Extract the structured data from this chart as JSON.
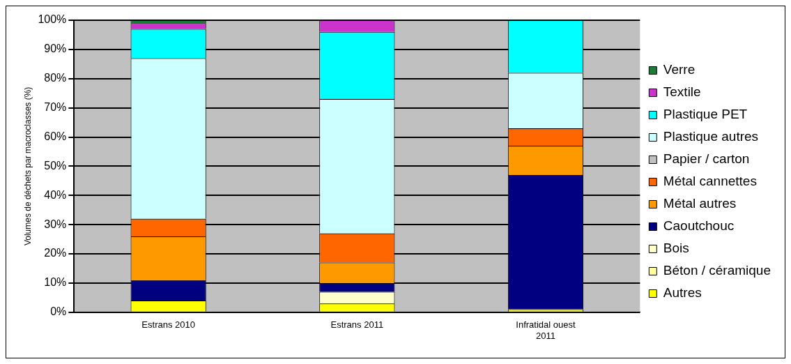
{
  "chart_data": {
    "type": "bar",
    "stacked": true,
    "ylabel": "Volumes de déchets par macroclasses (%)",
    "categories": [
      "Estrans 2010",
      "Estrans 2011",
      "Infratidal ouest 2011"
    ],
    "series": [
      {
        "name": "Autres",
        "color": "#ffff00",
        "values": [
          4,
          3,
          1
        ]
      },
      {
        "name": "Béton / céramique",
        "color": "#ffffa0",
        "values": [
          0,
          0,
          0
        ]
      },
      {
        "name": "Bois",
        "color": "#ffffcc",
        "values": [
          0,
          4,
          0
        ]
      },
      {
        "name": "Caoutchouc",
        "color": "#000080",
        "values": [
          7,
          3,
          46
        ]
      },
      {
        "name": "Métal autres",
        "color": "#ff9900",
        "values": [
          15,
          7,
          10
        ]
      },
      {
        "name": "Métal cannettes",
        "color": "#ff6600",
        "values": [
          6,
          10,
          6
        ]
      },
      {
        "name": "Papier / carton",
        "color": "#c0c0c0",
        "values": [
          0,
          0,
          0
        ]
      },
      {
        "name": "Plastique autres",
        "color": "#ccffff",
        "values": [
          55,
          46,
          19
        ]
      },
      {
        "name": "Plastique PET",
        "color": "#00ffff",
        "values": [
          10,
          23,
          18
        ]
      },
      {
        "name": "Textile",
        "color": "#cc33cc",
        "values": [
          2,
          4,
          0
        ]
      },
      {
        "name": "Verre",
        "color": "#1f7a3a",
        "values": [
          1,
          0,
          0
        ]
      }
    ],
    "ylim": [
      0,
      100
    ],
    "yticks": [
      {
        "value": 0,
        "label": "0%"
      },
      {
        "value": 10,
        "label": "10%"
      },
      {
        "value": 20,
        "label": "20%"
      },
      {
        "value": 30,
        "label": "30%"
      },
      {
        "value": 40,
        "label": "40%"
      },
      {
        "value": 50,
        "label": "50%"
      },
      {
        "value": 60,
        "label": "60%"
      },
      {
        "value": 70,
        "label": "70%"
      },
      {
        "value": 80,
        "label": "80%"
      },
      {
        "value": 90,
        "label": "90%"
      },
      {
        "value": 100,
        "label": "100%"
      }
    ],
    "grid": "y",
    "legend": "right"
  }
}
